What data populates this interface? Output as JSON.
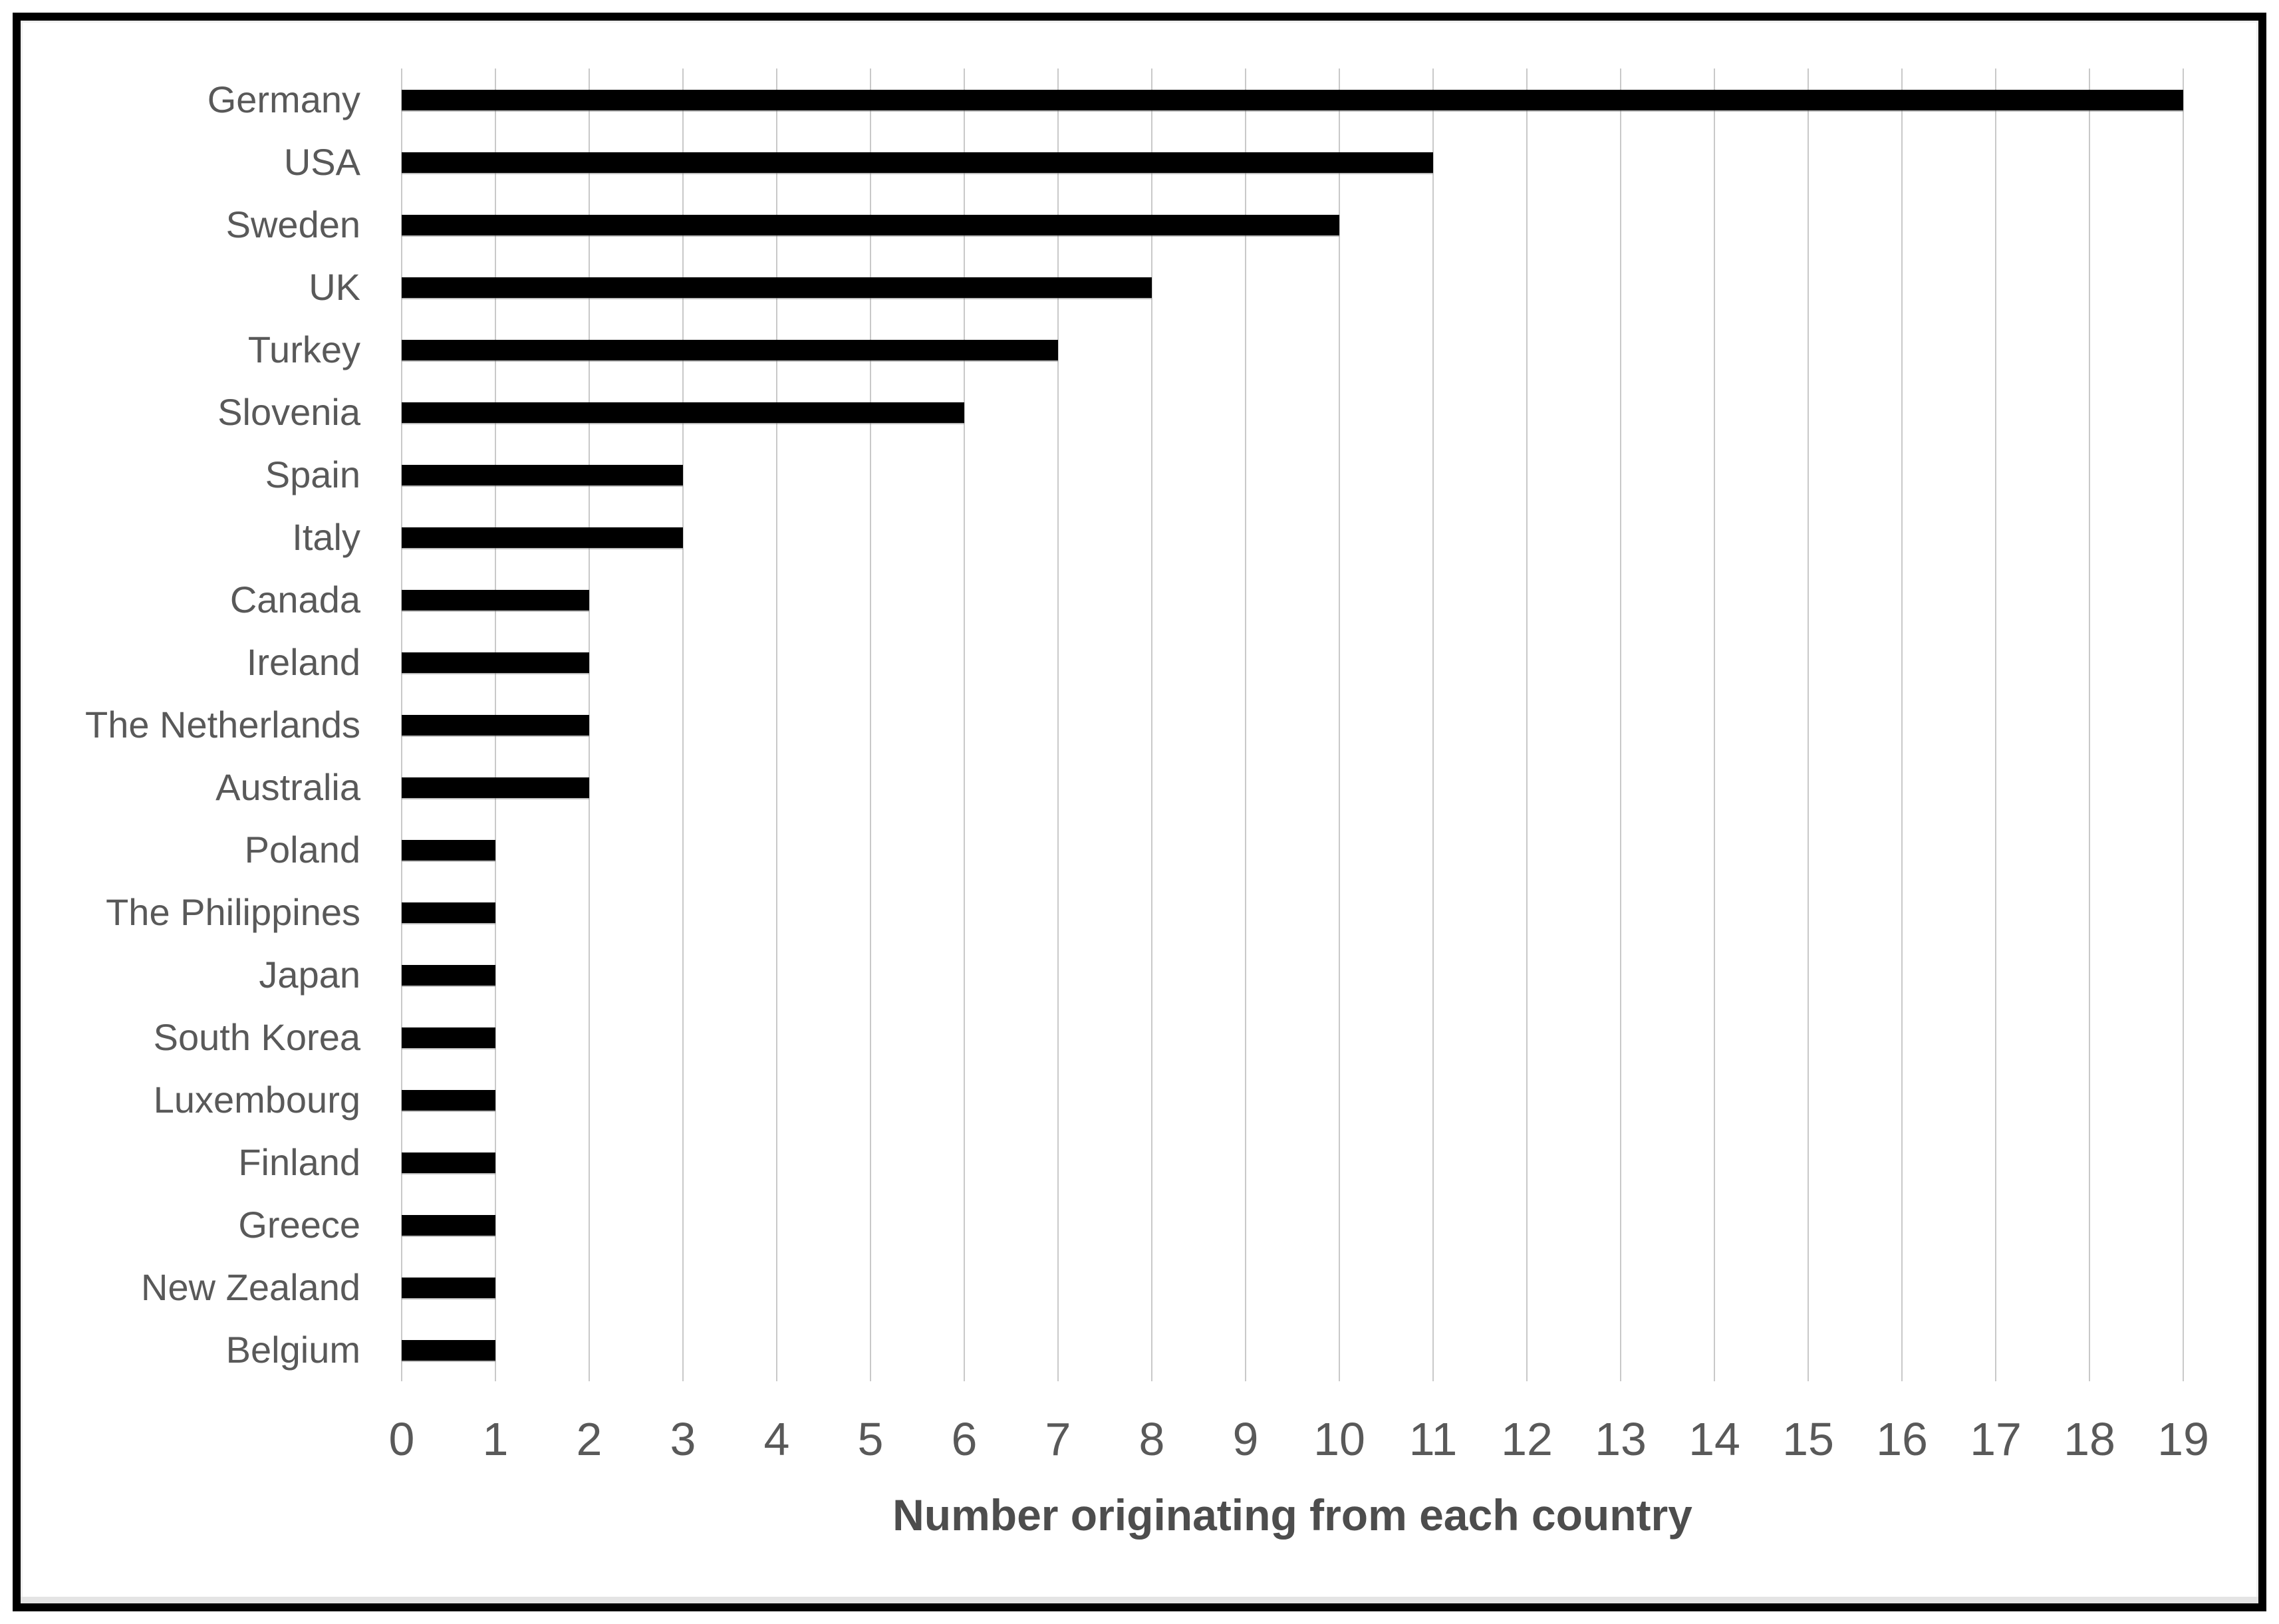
{
  "chart_data": {
    "type": "bar",
    "orientation": "horizontal",
    "title": "",
    "categories": [
      "Germany",
      "USA",
      "Sweden",
      "UK",
      "Turkey",
      "Slovenia",
      "Spain",
      "Italy",
      "Canada",
      "Ireland",
      "The Netherlands",
      "Australia",
      "Poland",
      "The Philippines",
      "Japan",
      "South Korea",
      "Luxembourg",
      "Finland",
      "Greece",
      "New Zealand",
      "Belgium"
    ],
    "values": [
      19,
      11,
      10,
      8,
      7,
      6,
      3,
      3,
      2,
      2,
      2,
      2,
      1,
      1,
      1,
      1,
      1,
      1,
      1,
      1,
      1
    ],
    "xlabel": "Number originating from each country",
    "ylabel": "",
    "xlim": [
      0,
      19
    ],
    "xticks": [
      0,
      1,
      2,
      3,
      4,
      5,
      6,
      7,
      8,
      9,
      10,
      11,
      12,
      13,
      14,
      15,
      16,
      17,
      18,
      19
    ],
    "grid": "vertical",
    "legend_position": "none",
    "bar_color": "#000000",
    "gridline_color": "#c9c9c9",
    "text_color": "#595959",
    "title_color": "#4d4d4d",
    "frame_color": "#000000"
  }
}
